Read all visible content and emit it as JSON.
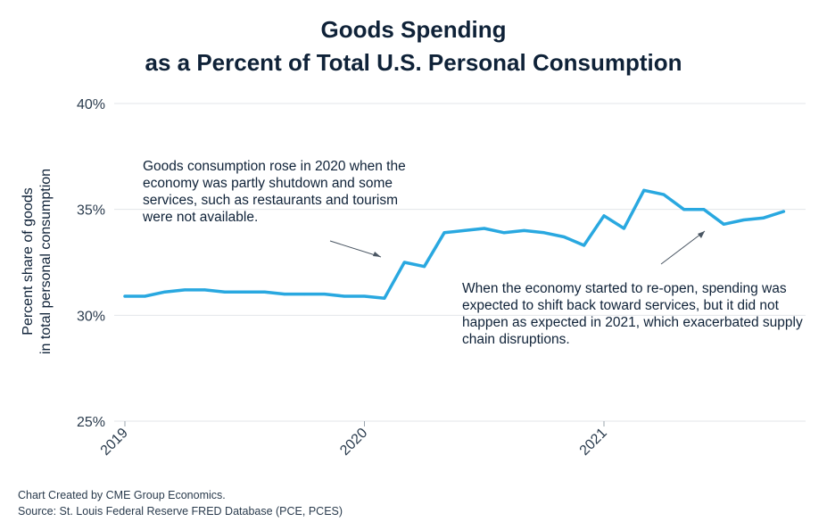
{
  "title_line1": "Goods Spending",
  "title_line2": "as a Percent of Total U.S. Personal Consumption",
  "footer_line1": "Chart Created by CME Group Economics.",
  "footer_line2": "Source: St. Louis Federal Reserve FRED Database (PCE, PCES)",
  "annotations": [
    "Goods consumption rose in 2020 when the economy was partly shutdown and some services, such as restaurants and tourism were not available.",
    "When the economy started to re-open, spending was expected to shift back toward services, but it did not happen as expected in 2021, which exacerbated supply chain disruptions."
  ],
  "colors": {
    "line": "#29a8e0",
    "grid": "#e3e6ea",
    "text": "#0f2238"
  },
  "chart_data": {
    "type": "line",
    "title": "Goods Spending as a Percent of Total U.S. Personal Consumption",
    "ylabel_line1": "Percent share of goods",
    "ylabel_line2": "in total personal consumption",
    "xlabel": "",
    "ylim": [
      25,
      40
    ],
    "yticks": [
      25,
      30,
      35,
      40
    ],
    "ytick_labels": [
      "25%",
      "30%",
      "35%",
      "40%"
    ],
    "xticks": [
      "2019",
      "2020",
      "2021"
    ],
    "grid": true,
    "x": [
      "2019-01",
      "2019-02",
      "2019-03",
      "2019-04",
      "2019-05",
      "2019-06",
      "2019-07",
      "2019-08",
      "2019-09",
      "2019-10",
      "2019-11",
      "2019-12",
      "2020-01",
      "2020-02",
      "2020-03",
      "2020-04",
      "2020-05",
      "2020-06",
      "2020-07",
      "2020-08",
      "2020-09",
      "2020-10",
      "2020-11",
      "2020-12",
      "2021-01",
      "2021-02",
      "2021-03",
      "2021-04",
      "2021-05",
      "2021-06",
      "2021-07",
      "2021-08",
      "2021-09",
      "2021-10"
    ],
    "series": [
      {
        "values": [
          30.9,
          30.9,
          31.1,
          31.2,
          31.2,
          31.1,
          31.1,
          31.1,
          31.0,
          31.0,
          31.0,
          30.9,
          30.9,
          30.8,
          32.5,
          32.3,
          33.9,
          34.0,
          34.1,
          33.9,
          34.0,
          33.9,
          33.7,
          33.3,
          34.7,
          34.1,
          35.9,
          35.7,
          35.0,
          35.0,
          34.3,
          34.5,
          34.6,
          34.9
        ]
      }
    ]
  }
}
